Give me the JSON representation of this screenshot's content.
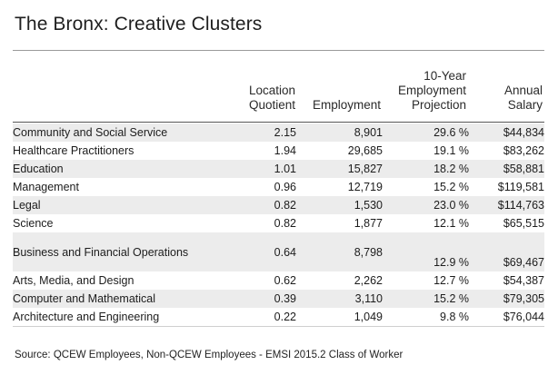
{
  "title": "The Bronx: Creative Clusters",
  "columns": {
    "location_quotient": [
      "Location",
      "Quotient"
    ],
    "employment": [
      "Employment"
    ],
    "projection": [
      "10-Year",
      "Employment",
      "Projection"
    ],
    "salary": [
      "Annual",
      "Salary"
    ]
  },
  "rows": [
    {
      "name": "Community and Social Service",
      "lq": "2.15",
      "employment": "8,901",
      "projection": "29.6 %",
      "salary": "$44,834"
    },
    {
      "name": "Healthcare Practitioners",
      "lq": "1.94",
      "employment": "29,685",
      "projection": "19.1 %",
      "salary": "$83,262"
    },
    {
      "name": "Education",
      "lq": "1.01",
      "employment": "15,827",
      "projection": "18.2 %",
      "salary": "$58,881"
    },
    {
      "name": "Management",
      "lq": "0.96",
      "employment": "12,719",
      "projection": "15.2 %",
      "salary": "$119,581"
    },
    {
      "name": "Legal",
      "lq": "0.82",
      "employment": "1,530",
      "projection": "23.0 %",
      "salary": "$114,763"
    },
    {
      "name": "Science",
      "lq": "0.82",
      "employment": "1,877",
      "projection": "12.1 %",
      "salary": "$65,515"
    },
    {
      "name": "Business and Financial Operations",
      "lq": "0.64",
      "employment": "8,798",
      "projection": "12.9 %",
      "salary": "$69,467"
    },
    {
      "name": "Arts, Media, and Design",
      "lq": "0.62",
      "employment": "2,262",
      "projection": "12.7 %",
      "salary": "$54,387"
    },
    {
      "name": "Computer and Mathematical",
      "lq": "0.39",
      "employment": "3,110",
      "projection": "15.2 %",
      "salary": "$79,305"
    },
    {
      "name": "Architecture and Engineering",
      "lq": "0.22",
      "employment": "1,049",
      "projection": "9.8 %",
      "salary": "$76,044"
    }
  ],
  "source": "Source: QCEW Employees, Non-QCEW Employees - EMSI 2015.2 Class of Worker",
  "colors": {
    "row_alternate": "#ececec",
    "header_rule": "#555555",
    "top_rule": "#9a9a9a"
  }
}
